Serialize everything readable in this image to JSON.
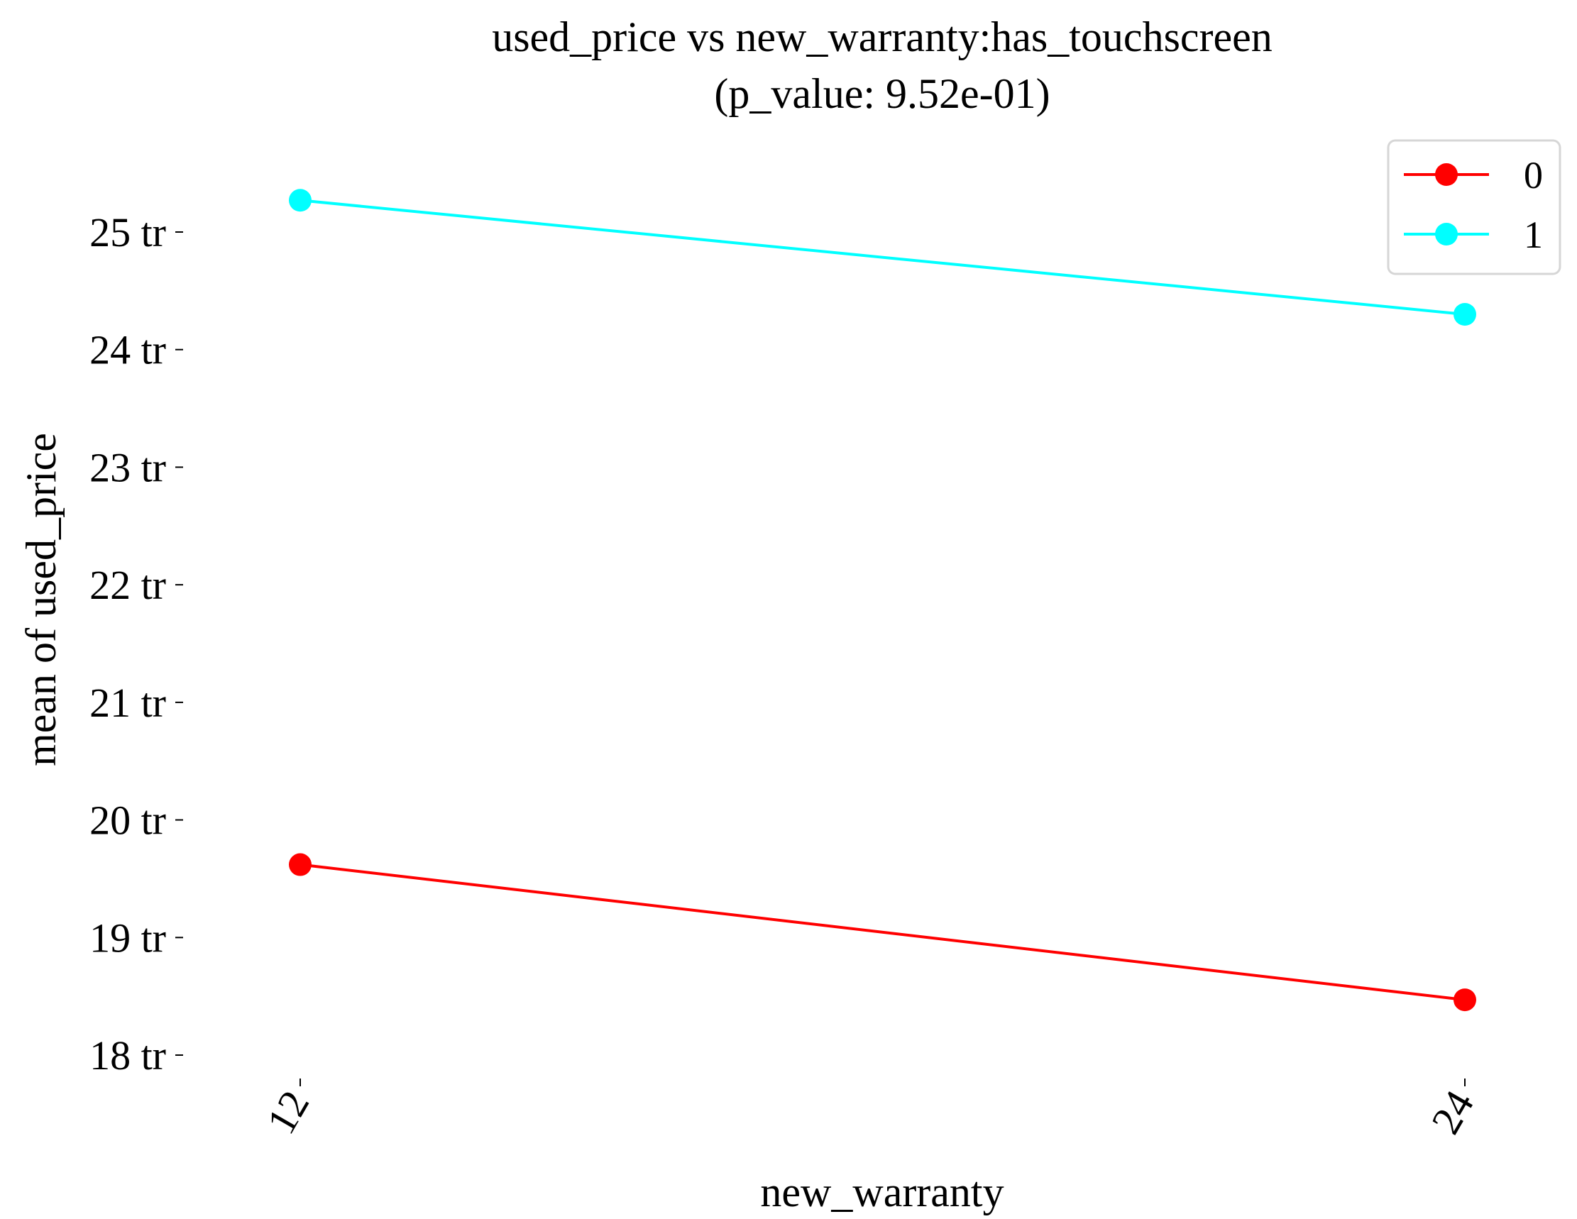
{
  "chart_data": {
    "type": "line",
    "title": "used_price vs new_warranty:has_touchscreen",
    "subtitle": "(p_value: 9.52e-01)",
    "xlabel": "new_warranty",
    "ylabel": "mean of used_price",
    "categories": [
      "12",
      "24"
    ],
    "yticks": [
      {
        "value": 18,
        "label": "18 tr"
      },
      {
        "value": 19,
        "label": "19 tr"
      },
      {
        "value": 20,
        "label": "20 tr"
      },
      {
        "value": 21,
        "label": "21 tr"
      },
      {
        "value": 22,
        "label": "22 tr"
      },
      {
        "value": 23,
        "label": "23 tr"
      },
      {
        "value": 24,
        "label": "24 tr"
      },
      {
        "value": 25,
        "label": "25 tr"
      }
    ],
    "ylim": [
      17.7,
      25.9
    ],
    "grid": false,
    "legend_position": "top-right",
    "series": [
      {
        "name": "0",
        "color": "#ff0000",
        "values": [
          19.62,
          18.47
        ]
      },
      {
        "name": "1",
        "color": "#00ffff",
        "values": [
          25.27,
          24.3
        ]
      }
    ]
  }
}
